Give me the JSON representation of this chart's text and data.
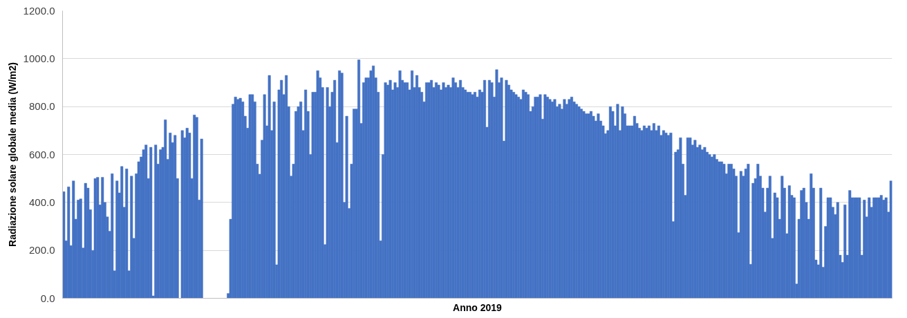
{
  "chart_data": {
    "type": "bar",
    "xlabel": "Anno 2019",
    "ylabel": "Radiazione solare globale media (W/m2)",
    "ylim": [
      0,
      1200
    ],
    "yticks": [
      {
        "value": 0,
        "label": "0.0"
      },
      {
        "value": 200,
        "label": "200.0"
      },
      {
        "value": 400,
        "label": "400.0"
      },
      {
        "value": 600,
        "label": "600.0"
      },
      {
        "value": 800,
        "label": "800.0"
      },
      {
        "value": 1000,
        "label": "1000.0"
      },
      {
        "value": 1200,
        "label": "1200.0"
      }
    ],
    "grid": "y",
    "tick_labels": "y",
    "series": [
      {
        "color": "#4472c4",
        "values": [
          445,
          240,
          465,
          220,
          490,
          330,
          410,
          415,
          210,
          480,
          460,
          370,
          200,
          500,
          505,
          390,
          505,
          400,
          340,
          280,
          520,
          115,
          490,
          440,
          550,
          380,
          540,
          115,
          510,
          250,
          520,
          570,
          590,
          620,
          640,
          500,
          630,
          10,
          640,
          560,
          620,
          630,
          745,
          580,
          690,
          650,
          680,
          500,
          0,
          700,
          670,
          710,
          690,
          500,
          765,
          755,
          410,
          665,
          null,
          null,
          null,
          null,
          null,
          null,
          null,
          null,
          null,
          null,
          20,
          330,
          810,
          840,
          830,
          835,
          820,
          760,
          710,
          850,
          850,
          820,
          560,
          518,
          660,
          850,
          720,
          930,
          700,
          820,
          140,
          870,
          910,
          850,
          930,
          800,
          510,
          560,
          780,
          800,
          820,
          700,
          870,
          780,
          600,
          860,
          860,
          950,
          920,
          880,
          224,
          880,
          800,
          860,
          910,
          650,
          950,
          940,
          400,
          760,
          375,
          560,
          790,
          790,
          995,
          730,
          900,
          920,
          920,
          950,
          970,
          920,
          860,
          240,
          600,
          900,
          890,
          910,
          870,
          900,
          880,
          950,
          910,
          900,
          900,
          870,
          950,
          880,
          930,
          880,
          860,
          820,
          900,
          900,
          910,
          880,
          900,
          890,
          870,
          900,
          880,
          890,
          880,
          920,
          900,
          880,
          910,
          880,
          870,
          860,
          860,
          850,
          860,
          840,
          870,
          860,
          910,
          714,
          910,
          900,
          840,
          954,
          900,
          920,
          656,
          910,
          890,
          870,
          860,
          850,
          840,
          830,
          870,
          860,
          850,
          780,
          800,
          840,
          840,
          850,
          748,
          850,
          840,
          830,
          820,
          830,
          800,
          810,
          790,
          830,
          810,
          830,
          840,
          820,
          810,
          800,
          790,
          780,
          770,
          770,
          780,
          760,
          740,
          770,
          740,
          720,
          687,
          700,
          800,
          780,
          720,
          810,
          700,
          800,
          770,
          720,
          720,
          720,
          760,
          730,
          710,
          700,
          720,
          710,
          720,
          700,
          730,
          700,
          720,
          680,
          700,
          690,
          680,
          690,
          320,
          610,
          620,
          670,
          560,
          430,
          670,
          670,
          640,
          660,
          630,
          640,
          620,
          630,
          610,
          600,
          590,
          600,
          580,
          570,
          570,
          560,
          520,
          560,
          560,
          540,
          510,
          274,
          530,
          510,
          540,
          560,
          142,
          480,
          500,
          560,
          510,
          460,
          360,
          460,
          510,
          250,
          440,
          420,
          330,
          510,
          460,
          270,
          470,
          430,
          420,
          60,
          330,
          450,
          460,
          400,
          330,
          520,
          460,
          160,
          140,
          460,
          130,
          300,
          420,
          420,
          380,
          350,
          400,
          180,
          150,
          390,
          180,
          450,
          420,
          420,
          420,
          420,
          180,
          410,
          340,
          420,
          380,
          420,
          420,
          420,
          430,
          410,
          420,
          360,
          490
        ]
      }
    ]
  }
}
